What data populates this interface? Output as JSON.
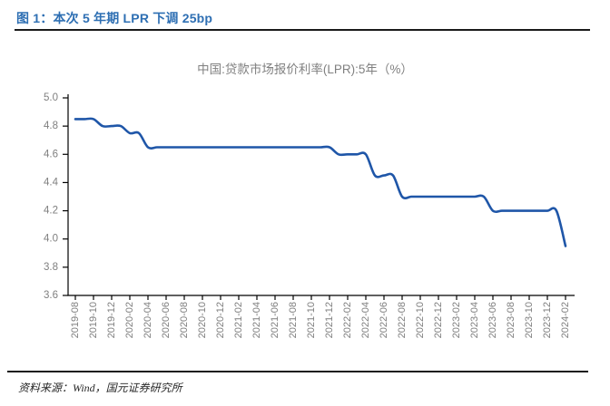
{
  "figure": {
    "caption": "图 1：本次 5 年期 LPR 下调 25bp"
  },
  "chart_data": {
    "type": "line",
    "title": "中国:贷款市场报价利率(LPR):5年（%）",
    "x": [
      "2019-08",
      "2019-09",
      "2019-10",
      "2019-11",
      "2019-12",
      "2020-01",
      "2020-02",
      "2020-03",
      "2020-04",
      "2020-05",
      "2020-06",
      "2020-07",
      "2020-08",
      "2020-09",
      "2020-10",
      "2020-11",
      "2020-12",
      "2021-01",
      "2021-02",
      "2021-03",
      "2021-04",
      "2021-05",
      "2021-06",
      "2021-07",
      "2021-08",
      "2021-09",
      "2021-10",
      "2021-11",
      "2021-12",
      "2022-01",
      "2022-02",
      "2022-03",
      "2022-04",
      "2022-05",
      "2022-06",
      "2022-07",
      "2022-08",
      "2022-09",
      "2022-10",
      "2022-11",
      "2022-12",
      "2023-01",
      "2023-02",
      "2023-03",
      "2023-04",
      "2023-05",
      "2023-06",
      "2023-07",
      "2023-08",
      "2023-09",
      "2023-10",
      "2023-11",
      "2023-12",
      "2024-01",
      "2024-02"
    ],
    "values": [
      4.85,
      4.85,
      4.85,
      4.8,
      4.8,
      4.8,
      4.75,
      4.75,
      4.65,
      4.65,
      4.65,
      4.65,
      4.65,
      4.65,
      4.65,
      4.65,
      4.65,
      4.65,
      4.65,
      4.65,
      4.65,
      4.65,
      4.65,
      4.65,
      4.65,
      4.65,
      4.65,
      4.65,
      4.65,
      4.6,
      4.6,
      4.6,
      4.6,
      4.45,
      4.45,
      4.45,
      4.3,
      4.3,
      4.3,
      4.3,
      4.3,
      4.3,
      4.3,
      4.3,
      4.3,
      4.3,
      4.2,
      4.2,
      4.2,
      4.2,
      4.2,
      4.2,
      4.2,
      4.2,
      3.95
    ],
    "x_tick_labels": [
      "2019-08",
      "2019-10",
      "2019-12",
      "2020-02",
      "2020-04",
      "2020-06",
      "2020-08",
      "2020-10",
      "2020-12",
      "2021-02",
      "2021-04",
      "2021-06",
      "2021-08",
      "2021-10",
      "2021-12",
      "2022-02",
      "2022-04",
      "2022-06",
      "2022-08",
      "2022-10",
      "2022-12",
      "2023-02",
      "2023-04",
      "2023-06",
      "2023-08",
      "2023-10",
      "2023-12",
      "2024-02"
    ],
    "y_tick_labels": [
      "5.0",
      "4.8",
      "4.6",
      "4.4",
      "4.2",
      "4.0",
      "3.8",
      "3.6"
    ],
    "ylim": [
      3.6,
      5.0
    ],
    "grid": false,
    "legend_position": "none",
    "line_color": "#1F56A8",
    "axis_color": "#000000",
    "label_color": "#7F7F7F"
  },
  "footer": {
    "source": "资料来源：Wind，国元证券研究所"
  }
}
